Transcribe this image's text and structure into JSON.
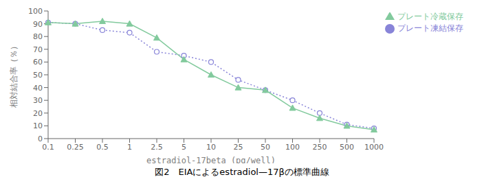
{
  "chart_data": {
    "type": "line",
    "title": "図2　EIAによるestradiol—17βの標準曲線",
    "xlabel": "estradiol-17beta (pg/well)",
    "ylabel": "相対結合率（％）",
    "categories": [
      "0.1",
      "0.25",
      "0.5",
      "1",
      "2.5",
      "5",
      "10",
      "25",
      "50",
      "100",
      "250",
      "500",
      "1000"
    ],
    "series": [
      {
        "name": "プレート凍結保存",
        "values": [
          91,
          90,
          85,
          83,
          68,
          65,
          60,
          46,
          38,
          30,
          20,
          11,
          8
        ],
        "marker": "circle",
        "line_style": "dotted"
      },
      {
        "name": "プレート冷蔵保存",
        "values": [
          91,
          90,
          92,
          90,
          79,
          62,
          50,
          40,
          38,
          24,
          16,
          10,
          7
        ],
        "marker": "triangle",
        "line_style": "solid"
      }
    ],
    "ylim": [
      0,
      100
    ],
    "yticks": [
      0,
      10,
      20,
      30,
      40,
      50,
      60,
      70,
      80,
      90,
      100
    ],
    "grid": false,
    "legend": "right"
  }
}
